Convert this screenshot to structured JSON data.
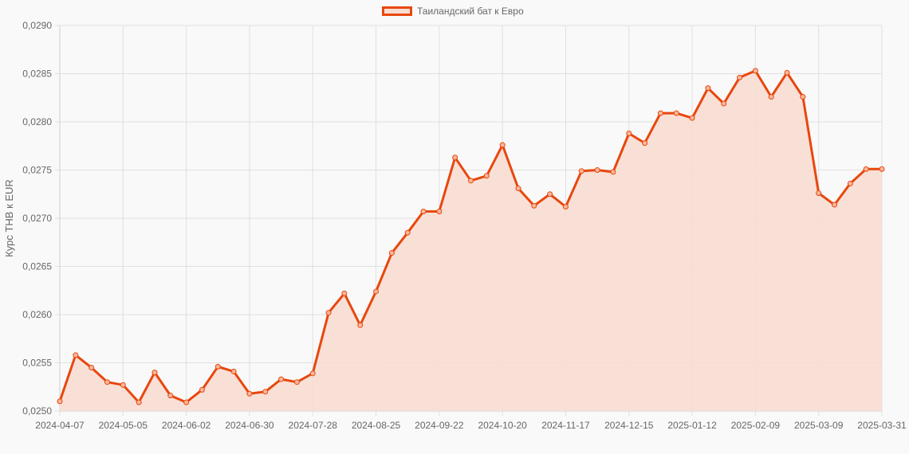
{
  "legend": {
    "label": "Таиландский бат к Евро",
    "border_color": "#e8470e",
    "fill_color": "#f8ddd2"
  },
  "chart_data": {
    "type": "line",
    "title": "",
    "xlabel": "",
    "ylabel": "Курс THB к EUR",
    "ylim": [
      0.025,
      0.029
    ],
    "y_ticks": [
      "0,0250",
      "0,0255",
      "0,0260",
      "0,0265",
      "0,0270",
      "0,0275",
      "0,0280",
      "0,0285",
      "0,0290"
    ],
    "x_tick_labels": [
      "2024-04-07",
      "2024-05-05",
      "2024-06-02",
      "2024-06-30",
      "2024-07-28",
      "2024-08-25",
      "2024-09-22",
      "2024-10-20",
      "2024-11-17",
      "2024-12-15",
      "2025-01-12",
      "2025-02-09",
      "2025-03-09",
      "2025-03-31"
    ],
    "grid": true,
    "legend_position": "top",
    "fill": true,
    "series": [
      {
        "name": "Таиландский бат к Евро",
        "color": "#e8470e",
        "x": [
          "2024-04-07",
          "2024-04-14",
          "2024-04-21",
          "2024-04-28",
          "2024-05-05",
          "2024-05-12",
          "2024-05-19",
          "2024-05-26",
          "2024-06-02",
          "2024-06-09",
          "2024-06-16",
          "2024-06-23",
          "2024-06-30",
          "2024-07-07",
          "2024-07-14",
          "2024-07-21",
          "2024-07-28",
          "2024-08-04",
          "2024-08-11",
          "2024-08-18",
          "2024-08-25",
          "2024-09-01",
          "2024-09-08",
          "2024-09-15",
          "2024-09-22",
          "2024-09-29",
          "2024-10-06",
          "2024-10-13",
          "2024-10-20",
          "2024-10-27",
          "2024-11-03",
          "2024-11-10",
          "2024-11-17",
          "2024-11-24",
          "2024-12-01",
          "2024-12-08",
          "2024-12-15",
          "2024-12-22",
          "2024-12-29",
          "2025-01-05",
          "2025-01-12",
          "2025-01-19",
          "2025-01-26",
          "2025-02-02",
          "2025-02-09",
          "2025-02-16",
          "2025-02-23",
          "2025-03-02",
          "2025-03-09",
          "2025-03-16",
          "2025-03-23",
          "2025-03-30",
          "2025-03-31"
        ],
        "values": [
          0.0251,
          0.02558,
          0.02545,
          0.0253,
          0.02527,
          0.02509,
          0.0254,
          0.02516,
          0.02509,
          0.02522,
          0.02546,
          0.02541,
          0.02518,
          0.0252,
          0.02533,
          0.0253,
          0.02539,
          0.02602,
          0.02622,
          0.02589,
          0.02624,
          0.02664,
          0.02685,
          0.02707,
          0.02707,
          0.02763,
          0.02739,
          0.02744,
          0.02776,
          0.02731,
          0.02713,
          0.02725,
          0.02712,
          0.02749,
          0.0275,
          0.02748,
          0.02788,
          0.02778,
          0.02809,
          0.02809,
          0.02804,
          0.02835,
          0.02819,
          0.02846,
          0.02853,
          0.02826,
          0.02851,
          0.02826,
          0.02726,
          0.02714,
          0.02736,
          0.02751,
          0.02751
        ]
      }
    ]
  }
}
